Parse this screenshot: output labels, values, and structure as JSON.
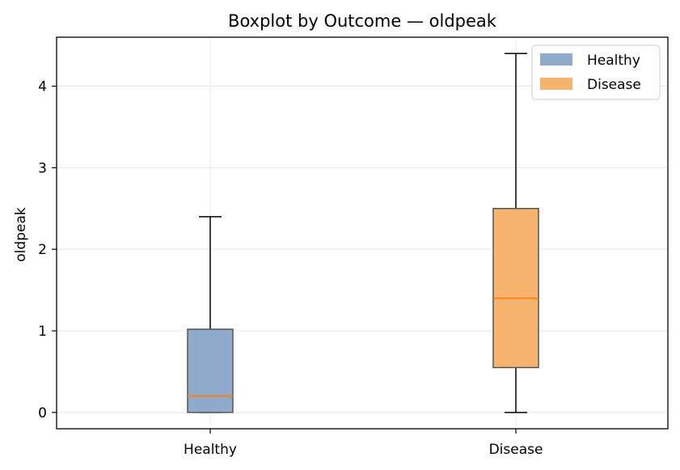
{
  "chart_data": {
    "type": "boxplot",
    "title": "Boxplot by Outcome — oldpeak",
    "xlabel": "",
    "ylabel": "oldpeak",
    "ylim": [
      -0.2,
      4.6
    ],
    "yticks": [
      0,
      1,
      2,
      3,
      4
    ],
    "grid": true,
    "legend_position": "top-right",
    "categories": [
      "Healthy",
      "Disease"
    ],
    "series": [
      {
        "name": "Healthy",
        "color": "#8faacb",
        "stats": {
          "min": 0.0,
          "q1": 0.0,
          "median": 0.2,
          "q3": 1.02,
          "max": 2.4
        }
      },
      {
        "name": "Disease",
        "color": "#f7b46e",
        "stats": {
          "min": 0.0,
          "q1": 0.55,
          "median": 1.4,
          "q3": 2.5,
          "max": 4.4
        }
      }
    ],
    "median_color": "#ff7f0e",
    "legend": [
      "Healthy",
      "Disease"
    ]
  }
}
